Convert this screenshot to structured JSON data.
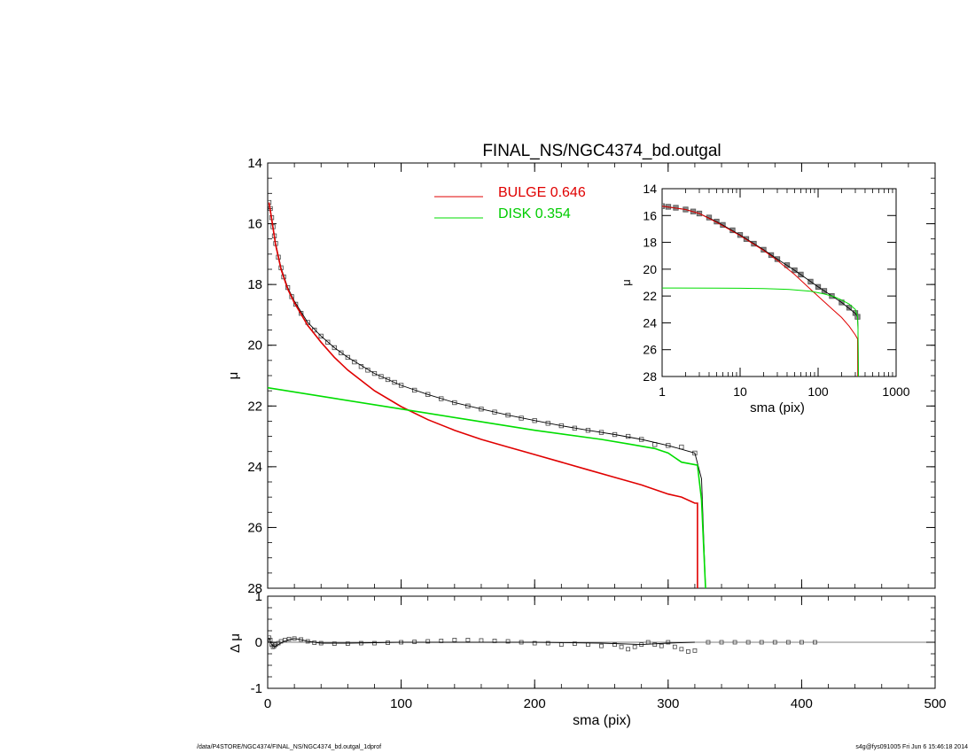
{
  "footer": {
    "left": "/data/P4STORE/NGC4374/FINAL_NS/NGC4374_bd.outgal_1dprof",
    "right": "s4g@fys091005  Fri Jun  6 15:46:18 2014"
  },
  "colors": {
    "bulge": "#e00000",
    "disk": "#00dd00",
    "data": "#000000",
    "model": "#000000"
  },
  "chart_data": [
    {
      "type": "scatter",
      "panel": "main",
      "title": "FINAL_NS/NGC4374_bd.outgal",
      "xlabel": "",
      "ylabel": "μ",
      "xlim": [
        0,
        500
      ],
      "ylim": [
        28,
        14
      ],
      "y_inverted": true,
      "xticks": [
        0,
        100,
        200,
        300,
        400,
        500
      ],
      "xtick_labels": [
        "",
        "",
        "",
        "",
        "",
        ""
      ],
      "yticks": [
        14,
        16,
        18,
        20,
        22,
        24,
        26,
        28
      ],
      "ytick_labels": [
        "14",
        "16",
        "18",
        "20",
        "22",
        "24",
        "26",
        "28"
      ],
      "legend": {
        "placement": "top-center",
        "entries": [
          {
            "label": "BULGE  0.646",
            "color": "#e00000"
          },
          {
            "label": "DISK  0.354",
            "color": "#00dd00"
          }
        ]
      },
      "series": [
        {
          "kind": "data-points",
          "x": [
            1,
            2,
            3,
            4,
            5,
            6,
            8,
            10,
            12,
            15,
            18,
            21,
            25,
            30,
            35,
            40,
            45,
            50,
            55,
            60,
            65,
            70,
            75,
            80,
            85,
            90,
            95,
            100,
            110,
            120,
            130,
            140,
            150,
            160,
            170,
            180,
            190,
            200,
            210,
            220,
            230,
            240,
            250,
            260,
            270,
            280,
            290,
            300,
            310,
            320
          ],
          "y": [
            15.3,
            15.5,
            15.8,
            16.1,
            16.4,
            16.65,
            17.1,
            17.45,
            17.75,
            18.1,
            18.4,
            18.65,
            18.95,
            19.25,
            19.5,
            19.7,
            19.9,
            20.08,
            20.25,
            20.4,
            20.55,
            20.7,
            20.82,
            20.93,
            21.03,
            21.13,
            21.22,
            21.32,
            21.48,
            21.62,
            21.76,
            21.89,
            22.0,
            22.1,
            22.2,
            22.3,
            22.4,
            22.48,
            22.57,
            22.65,
            22.73,
            22.8,
            22.87,
            22.94,
            23.0,
            23.1,
            23.27,
            23.3,
            23.35,
            23.55
          ]
        },
        {
          "kind": "model",
          "name": "",
          "x": [
            1,
            3,
            6,
            10,
            15,
            20,
            30,
            40,
            50,
            60,
            80,
            100,
            120,
            140,
            160,
            180,
            200,
            220,
            240,
            260,
            280,
            300,
            320,
            325,
            328
          ],
          "y": [
            15.3,
            15.8,
            16.65,
            17.45,
            18.1,
            18.55,
            19.25,
            19.7,
            20.08,
            20.4,
            20.93,
            21.32,
            21.62,
            21.89,
            22.1,
            22.3,
            22.48,
            22.65,
            22.8,
            22.94,
            23.1,
            23.3,
            23.55,
            24.4,
            28
          ]
        },
        {
          "kind": "component",
          "name": "BULGE",
          "x": [
            1,
            3,
            6,
            10,
            15,
            20,
            30,
            40,
            50,
            60,
            80,
            100,
            120,
            140,
            160,
            180,
            200,
            220,
            240,
            260,
            280,
            300,
            310,
            320,
            322,
            322
          ],
          "y": [
            15.3,
            15.85,
            16.7,
            17.5,
            18.15,
            18.6,
            19.35,
            19.9,
            20.4,
            20.82,
            21.5,
            22.02,
            22.45,
            22.8,
            23.1,
            23.35,
            23.6,
            23.85,
            24.1,
            24.35,
            24.6,
            24.9,
            25.0,
            25.2,
            25.2,
            28
          ]
        },
        {
          "kind": "component",
          "name": "DISK",
          "x": [
            0,
            50,
            100,
            150,
            200,
            250,
            270,
            290,
            300,
            310,
            322,
            325,
            328
          ],
          "y": [
            21.4,
            21.75,
            22.1,
            22.45,
            22.8,
            23.1,
            23.25,
            23.4,
            23.55,
            23.85,
            23.95,
            25.1,
            28
          ]
        }
      ]
    },
    {
      "type": "scatter",
      "panel": "inset",
      "title": "",
      "xlabel": "sma (pix)",
      "ylabel": "μ",
      "xscale": "log",
      "xlim": [
        1,
        1000
      ],
      "ylim": [
        28,
        14
      ],
      "y_inverted": true,
      "xticks": [
        1,
        10,
        100,
        1000
      ],
      "xtick_labels": [
        "1",
        "10",
        "100",
        "1000"
      ],
      "yticks": [
        14,
        16,
        18,
        20,
        22,
        24,
        26,
        28
      ],
      "ytick_labels": [
        "14",
        "16",
        "18",
        "20",
        "22",
        "24",
        "26",
        "28"
      ],
      "series": [
        {
          "kind": "data-points",
          "x": [
            1,
            1.2,
            1.5,
            2,
            2.5,
            3,
            4,
            5,
            6,
            8,
            10,
            12,
            15,
            20,
            25,
            30,
            40,
            50,
            60,
            80,
            100,
            120,
            150,
            200,
            250,
            300,
            320
          ],
          "y": [
            15.3,
            15.35,
            15.42,
            15.55,
            15.7,
            15.85,
            16.15,
            16.45,
            16.7,
            17.1,
            17.45,
            17.75,
            18.1,
            18.55,
            18.95,
            19.25,
            19.7,
            20.08,
            20.4,
            20.93,
            21.32,
            21.62,
            22.0,
            22.48,
            22.87,
            23.27,
            23.55
          ]
        },
        {
          "kind": "model",
          "name": "",
          "x": [
            1,
            2,
            3,
            5,
            10,
            20,
            30,
            50,
            100,
            200,
            300,
            320,
            325,
            328
          ],
          "y": [
            15.3,
            15.55,
            15.85,
            16.45,
            17.45,
            18.55,
            19.25,
            20.08,
            21.32,
            22.48,
            23.3,
            23.55,
            24.4,
            28
          ]
        },
        {
          "kind": "component",
          "name": "BULGE",
          "x": [
            1,
            2,
            3,
            5,
            10,
            20,
            30,
            50,
            80,
            100,
            150,
            200,
            250,
            300,
            320,
            322
          ],
          "y": [
            15.3,
            15.55,
            15.85,
            16.5,
            17.5,
            18.6,
            19.35,
            20.4,
            21.5,
            22.02,
            22.95,
            23.6,
            24.25,
            24.9,
            25.2,
            28
          ]
        },
        {
          "kind": "component",
          "name": "DISK",
          "x": [
            1,
            5,
            10,
            20,
            40,
            80,
            120,
            160,
            200,
            250,
            300,
            320,
            325,
            328
          ],
          "y": [
            21.4,
            21.41,
            21.42,
            21.44,
            21.5,
            21.65,
            21.85,
            22.05,
            22.3,
            22.6,
            23.0,
            23.55,
            24.5,
            28
          ]
        }
      ]
    },
    {
      "type": "scatter",
      "panel": "residual",
      "title": "",
      "xlabel": "sma (pix)",
      "ylabel": "Δ μ",
      "xlim": [
        0,
        500
      ],
      "ylim": [
        -1,
        1
      ],
      "xticks": [
        0,
        100,
        200,
        300,
        400,
        500
      ],
      "xtick_labels": [
        "0",
        "100",
        "200",
        "300",
        "400",
        "500"
      ],
      "yticks": [
        -1,
        0,
        1
      ],
      "ytick_labels": [
        "-1",
        "0",
        "1"
      ],
      "series": [
        {
          "kind": "residual-points",
          "x": [
            1,
            2,
            3,
            4,
            5,
            6,
            8,
            10,
            13,
            16,
            20,
            25,
            30,
            35,
            40,
            50,
            60,
            70,
            80,
            90,
            100,
            110,
            120,
            130,
            140,
            150,
            160,
            170,
            180,
            190,
            200,
            210,
            220,
            230,
            240,
            250,
            260,
            265,
            270,
            275,
            280,
            285,
            290,
            295,
            300,
            305,
            310,
            315,
            320,
            330,
            340,
            350,
            360,
            370,
            380,
            390,
            400,
            410
          ],
          "y": [
            0.1,
            0.05,
            -0.05,
            -0.1,
            -0.08,
            -0.05,
            -0.02,
            0.02,
            0.05,
            0.07,
            0.08,
            0.06,
            0.02,
            -0.01,
            -0.02,
            -0.03,
            -0.03,
            -0.02,
            -0.02,
            -0.01,
            0.0,
            0.01,
            0.02,
            0.03,
            0.05,
            0.05,
            0.04,
            0.03,
            0.02,
            0.0,
            -0.02,
            -0.02,
            -0.05,
            -0.03,
            -0.05,
            -0.08,
            -0.05,
            -0.1,
            -0.15,
            -0.1,
            -0.05,
            0.0,
            -0.05,
            -0.08,
            0.0,
            -0.1,
            -0.15,
            -0.2,
            -0.18,
            0.0,
            0.0,
            0.0,
            0.0,
            0.0,
            0.0,
            0.0,
            0.0,
            0.0
          ]
        },
        {
          "kind": "residual-line",
          "x": [
            1,
            3,
            5,
            8,
            12,
            16,
            20,
            25,
            30,
            40,
            60,
            100,
            200,
            250,
            280,
            300,
            320
          ],
          "y": [
            0.1,
            -0.05,
            -0.1,
            -0.05,
            0.02,
            0.06,
            0.08,
            0.06,
            0.02,
            -0.02,
            -0.02,
            0.0,
            0.0,
            -0.02,
            -0.05,
            -0.02,
            0.0
          ]
        }
      ]
    }
  ]
}
